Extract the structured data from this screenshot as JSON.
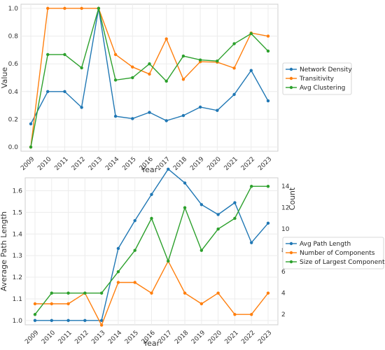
{
  "chart_data": [
    {
      "type": "line",
      "xlabel": "Year",
      "ylabel": "Value",
      "x": [
        "2009",
        "2010",
        "2011",
        "2012",
        "2013",
        "2014",
        "2015",
        "2016",
        "2017",
        "2018",
        "2019",
        "2020",
        "2021",
        "2022",
        "2023"
      ],
      "y_ticks": [
        "0.0",
        "0.2",
        "0.4",
        "0.6",
        "0.8",
        "1.0"
      ],
      "ylim": [
        -0.03,
        1.03
      ],
      "grid": true,
      "legend_position": "right",
      "series": [
        {
          "name": "Network Density",
          "color": "#1f77b4",
          "values": [
            0.167,
            0.4,
            0.4,
            0.286,
            1.0,
            0.222,
            0.205,
            0.25,
            0.19,
            0.227,
            0.288,
            0.264,
            0.379,
            0.552,
            0.333
          ]
        },
        {
          "name": "Transitivity",
          "color": "#ff7f0e",
          "values": [
            0.0,
            1.0,
            1.0,
            1.0,
            1.0,
            0.667,
            0.577,
            0.526,
            0.78,
            0.488,
            0.615,
            0.612,
            0.569,
            0.822,
            0.8
          ]
        },
        {
          "name": "Avg Clustering",
          "color": "#2ca02c",
          "values": [
            0.0,
            0.667,
            0.667,
            0.571,
            1.0,
            0.483,
            0.5,
            0.6,
            0.475,
            0.656,
            0.628,
            0.62,
            0.745,
            0.818,
            0.692
          ]
        }
      ]
    },
    {
      "type": "line",
      "xlabel": "Year",
      "ylabel": "Average Path Length",
      "ylabel_color": "#1f77b4",
      "y2label": "Count",
      "x": [
        "2009",
        "2010",
        "2011",
        "2012",
        "2013",
        "2014",
        "2015",
        "2016",
        "2017",
        "2018",
        "2019",
        "2020",
        "2021",
        "2022",
        "2023"
      ],
      "y_ticks": [
        "1.0",
        "1.1",
        "1.2",
        "1.3",
        "1.4",
        "1.5",
        "1.6"
      ],
      "ylim": [
        0.98,
        1.66
      ],
      "y2_ticks": [
        "2",
        "4",
        "6",
        "8",
        "10",
        "12",
        "14"
      ],
      "y2lim": [
        1.033,
        14.8
      ],
      "grid": true,
      "legend_position": "right",
      "series": [
        {
          "name": "Avg Path Length",
          "color": "#1f77b4",
          "axis": "left",
          "values": [
            1.0,
            1.0,
            1.0,
            1.0,
            1.0,
            1.333,
            1.462,
            1.583,
            1.7,
            1.636,
            1.536,
            1.49,
            1.545,
            1.36,
            1.45
          ]
        },
        {
          "name": "Number of Components",
          "color": "#ff7f0e",
          "axis": "right",
          "values": [
            3,
            3,
            3,
            4,
            1,
            5,
            5,
            4,
            7,
            4,
            3,
            4,
            2,
            2,
            4
          ]
        },
        {
          "name": "Size of Largest Component",
          "color": "#2ca02c",
          "axis": "right",
          "values": [
            2,
            4,
            4,
            4,
            4,
            6,
            8,
            11,
            7,
            12,
            8,
            10,
            11,
            14,
            14
          ]
        }
      ]
    }
  ]
}
